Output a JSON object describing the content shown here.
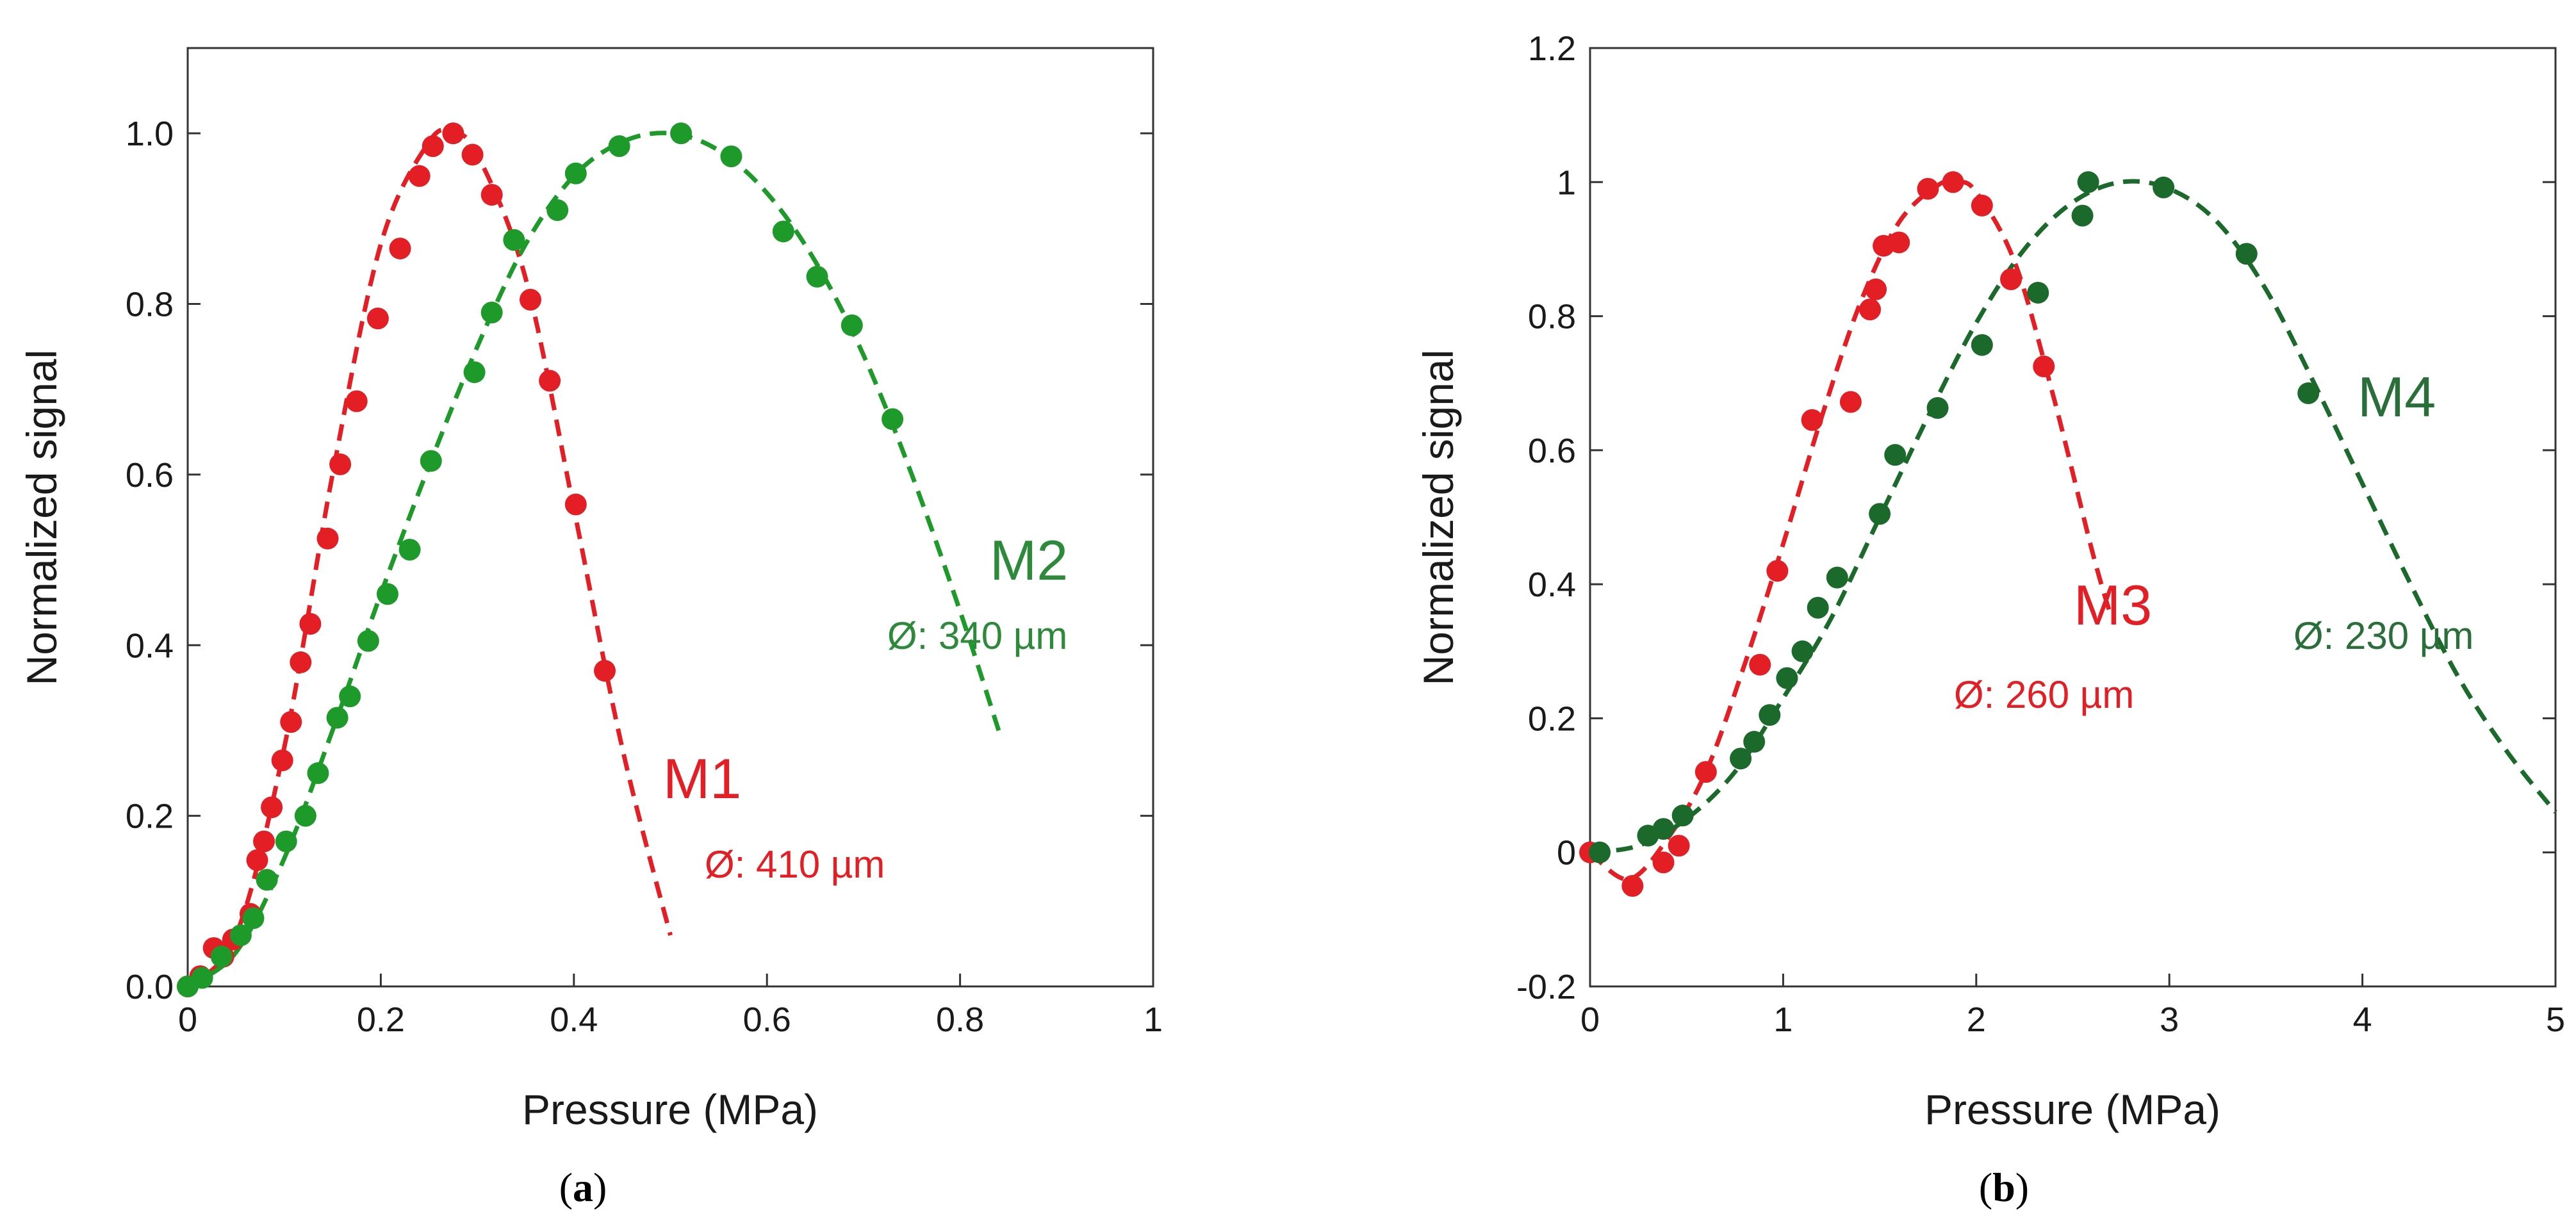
{
  "colors": {
    "red": "#e31e24",
    "green_a": "#1e9a2a",
    "green_b": "#1b6a2c",
    "text_green_a": "#2c8a3a",
    "text_green_b": "#2a6e3a",
    "axis": "#333333"
  },
  "chart_data": [
    {
      "type": "scatter",
      "panel_label": "a",
      "xlabel": "Pressure (MPa)",
      "ylabel": "Normalized signal",
      "xlim": [
        0,
        1
      ],
      "ylim": [
        0,
        1.1
      ],
      "x_ticks": [
        0,
        0.2,
        0.4,
        0.6,
        0.8,
        1
      ],
      "x_tick_labels": [
        "0",
        "0.2",
        "0.4",
        "0.6",
        "0.8",
        "1"
      ],
      "y_ticks": [
        0,
        0.2,
        0.4,
        0.6,
        0.8,
        1.0
      ],
      "y_tick_labels": [
        "0.0",
        "0.2",
        "0.4",
        "0.6",
        "0.8",
        "1.0"
      ],
      "grid": false,
      "series": [
        {
          "name": "M1",
          "note": "Ø: 410 µm",
          "color": "red",
          "x": [
            0.0,
            0.013,
            0.027,
            0.037,
            0.047,
            0.065,
            0.072,
            0.079,
            0.087,
            0.098,
            0.107,
            0.117,
            0.127,
            0.145,
            0.158,
            0.175,
            0.197,
            0.22,
            0.24,
            0.254,
            0.275,
            0.295,
            0.315,
            0.355,
            0.375,
            0.402,
            0.432
          ],
          "y": [
            0.0,
            0.012,
            0.045,
            0.035,
            0.055,
            0.085,
            0.148,
            0.17,
            0.21,
            0.265,
            0.31,
            0.38,
            0.425,
            0.525,
            0.612,
            0.686,
            0.783,
            0.865,
            0.95,
            0.985,
            1.0,
            0.975,
            0.928,
            0.805,
            0.71,
            0.565,
            0.37
          ],
          "fit": {
            "x": [
              0.0,
              0.05,
              0.1,
              0.15,
              0.2,
              0.25,
              0.275,
              0.3,
              0.35,
              0.4,
              0.45,
              0.5
            ],
            "y": [
              0.0,
              0.06,
              0.28,
              0.6,
              0.87,
              0.99,
              1.0,
              0.975,
              0.83,
              0.56,
              0.28,
              0.06
            ]
          }
        },
        {
          "name": "M2",
          "note": "Ø: 340 µm",
          "color": "green_a",
          "x": [
            0.0,
            0.015,
            0.035,
            0.055,
            0.068,
            0.082,
            0.102,
            0.122,
            0.135,
            0.155,
            0.168,
            0.187,
            0.207,
            0.23,
            0.252,
            0.297,
            0.315,
            0.338,
            0.383,
            0.402,
            0.447,
            0.511,
            0.563,
            0.617,
            0.652,
            0.688,
            0.73
          ],
          "y": [
            0.0,
            0.01,
            0.035,
            0.06,
            0.08,
            0.125,
            0.17,
            0.2,
            0.25,
            0.315,
            0.34,
            0.405,
            0.46,
            0.512,
            0.616,
            0.72,
            0.79,
            0.875,
            0.91,
            0.953,
            0.985,
            1.0,
            0.973,
            0.885,
            0.832,
            0.775,
            0.665
          ],
          "fit": {
            "x": [
              0.0,
              0.05,
              0.1,
              0.15,
              0.2,
              0.25,
              0.3,
              0.35,
              0.4,
              0.45,
              0.5,
              0.55,
              0.6,
              0.65,
              0.7,
              0.75,
              0.8,
              0.84
            ],
            "y": [
              0.0,
              0.04,
              0.15,
              0.3,
              0.46,
              0.61,
              0.75,
              0.87,
              0.95,
              0.99,
              1.0,
              0.98,
              0.93,
              0.85,
              0.74,
              0.6,
              0.44,
              0.3
            ]
          }
        }
      ]
    },
    {
      "type": "scatter",
      "panel_label": "b",
      "xlabel": "Pressure (MPa)",
      "ylabel": "Normalized signal",
      "xlim": [
        0,
        5
      ],
      "ylim": [
        -0.2,
        1.2
      ],
      "x_ticks": [
        0,
        1,
        2,
        3,
        4,
        5
      ],
      "x_tick_labels": [
        "0",
        "1",
        "2",
        "3",
        "4",
        "5"
      ],
      "y_ticks": [
        -0.2,
        0,
        0.2,
        0.4,
        0.6,
        0.8,
        1,
        1.2
      ],
      "y_tick_labels": [
        "-0.2",
        "0",
        "0.2",
        "0.4",
        "0.6",
        "0.8",
        "1",
        "1.2"
      ],
      "grid": false,
      "series": [
        {
          "name": "M3",
          "note": "Ø: 260 µm",
          "color": "red",
          "x": [
            0.0,
            0.22,
            0.38,
            0.46,
            0.6,
            0.88,
            0.97,
            1.15,
            1.35,
            1.45,
            1.48,
            1.52,
            1.6,
            1.75,
            1.88,
            2.03,
            2.18,
            2.35
          ],
          "y": [
            0.0,
            -0.05,
            -0.015,
            0.01,
            0.12,
            0.28,
            0.42,
            0.645,
            0.672,
            0.81,
            0.84,
            0.905,
            0.91,
            0.99,
            1.0,
            0.965,
            0.855,
            0.725
          ],
          "fit": {
            "x": [
              0.0,
              0.2,
              0.4,
              0.6,
              0.8,
              1.0,
              1.2,
              1.4,
              1.6,
              1.8,
              1.9,
              2.0,
              2.2,
              2.4,
              2.6,
              2.7
            ],
            "y": [
              0.0,
              -0.04,
              0.02,
              0.12,
              0.28,
              0.46,
              0.65,
              0.82,
              0.94,
              0.995,
              1.0,
              0.985,
              0.88,
              0.68,
              0.45,
              0.35
            ]
          }
        },
        {
          "name": "M4",
          "note": "Ø: 230 µm",
          "color": "green_b",
          "x": [
            0.05,
            0.3,
            0.38,
            0.48,
            0.78,
            0.85,
            0.93,
            1.02,
            1.1,
            1.18,
            1.28,
            1.5,
            1.58,
            1.8,
            2.03,
            2.32,
            2.55,
            2.58,
            2.97,
            3.4,
            3.72
          ],
          "y": [
            0.0,
            0.025,
            0.035,
            0.055,
            0.14,
            0.165,
            0.205,
            0.26,
            0.3,
            0.365,
            0.41,
            0.505,
            0.593,
            0.663,
            0.757,
            0.835,
            0.95,
            1.0,
            0.992,
            0.893,
            0.685
          ],
          "fit": {
            "x": [
              0.0,
              0.25,
              0.5,
              0.75,
              1.0,
              1.25,
              1.5,
              1.75,
              2.0,
              2.25,
              2.5,
              2.75,
              3.0,
              3.25,
              3.5,
              3.75,
              4.0,
              4.25,
              4.5,
              4.75,
              5.0
            ],
            "y": [
              0.0,
              0.01,
              0.05,
              0.12,
              0.23,
              0.35,
              0.5,
              0.65,
              0.79,
              0.9,
              0.97,
              1.0,
              0.99,
              0.94,
              0.84,
              0.7,
              0.55,
              0.4,
              0.26,
              0.15,
              0.06
            ]
          }
        }
      ]
    }
  ]
}
